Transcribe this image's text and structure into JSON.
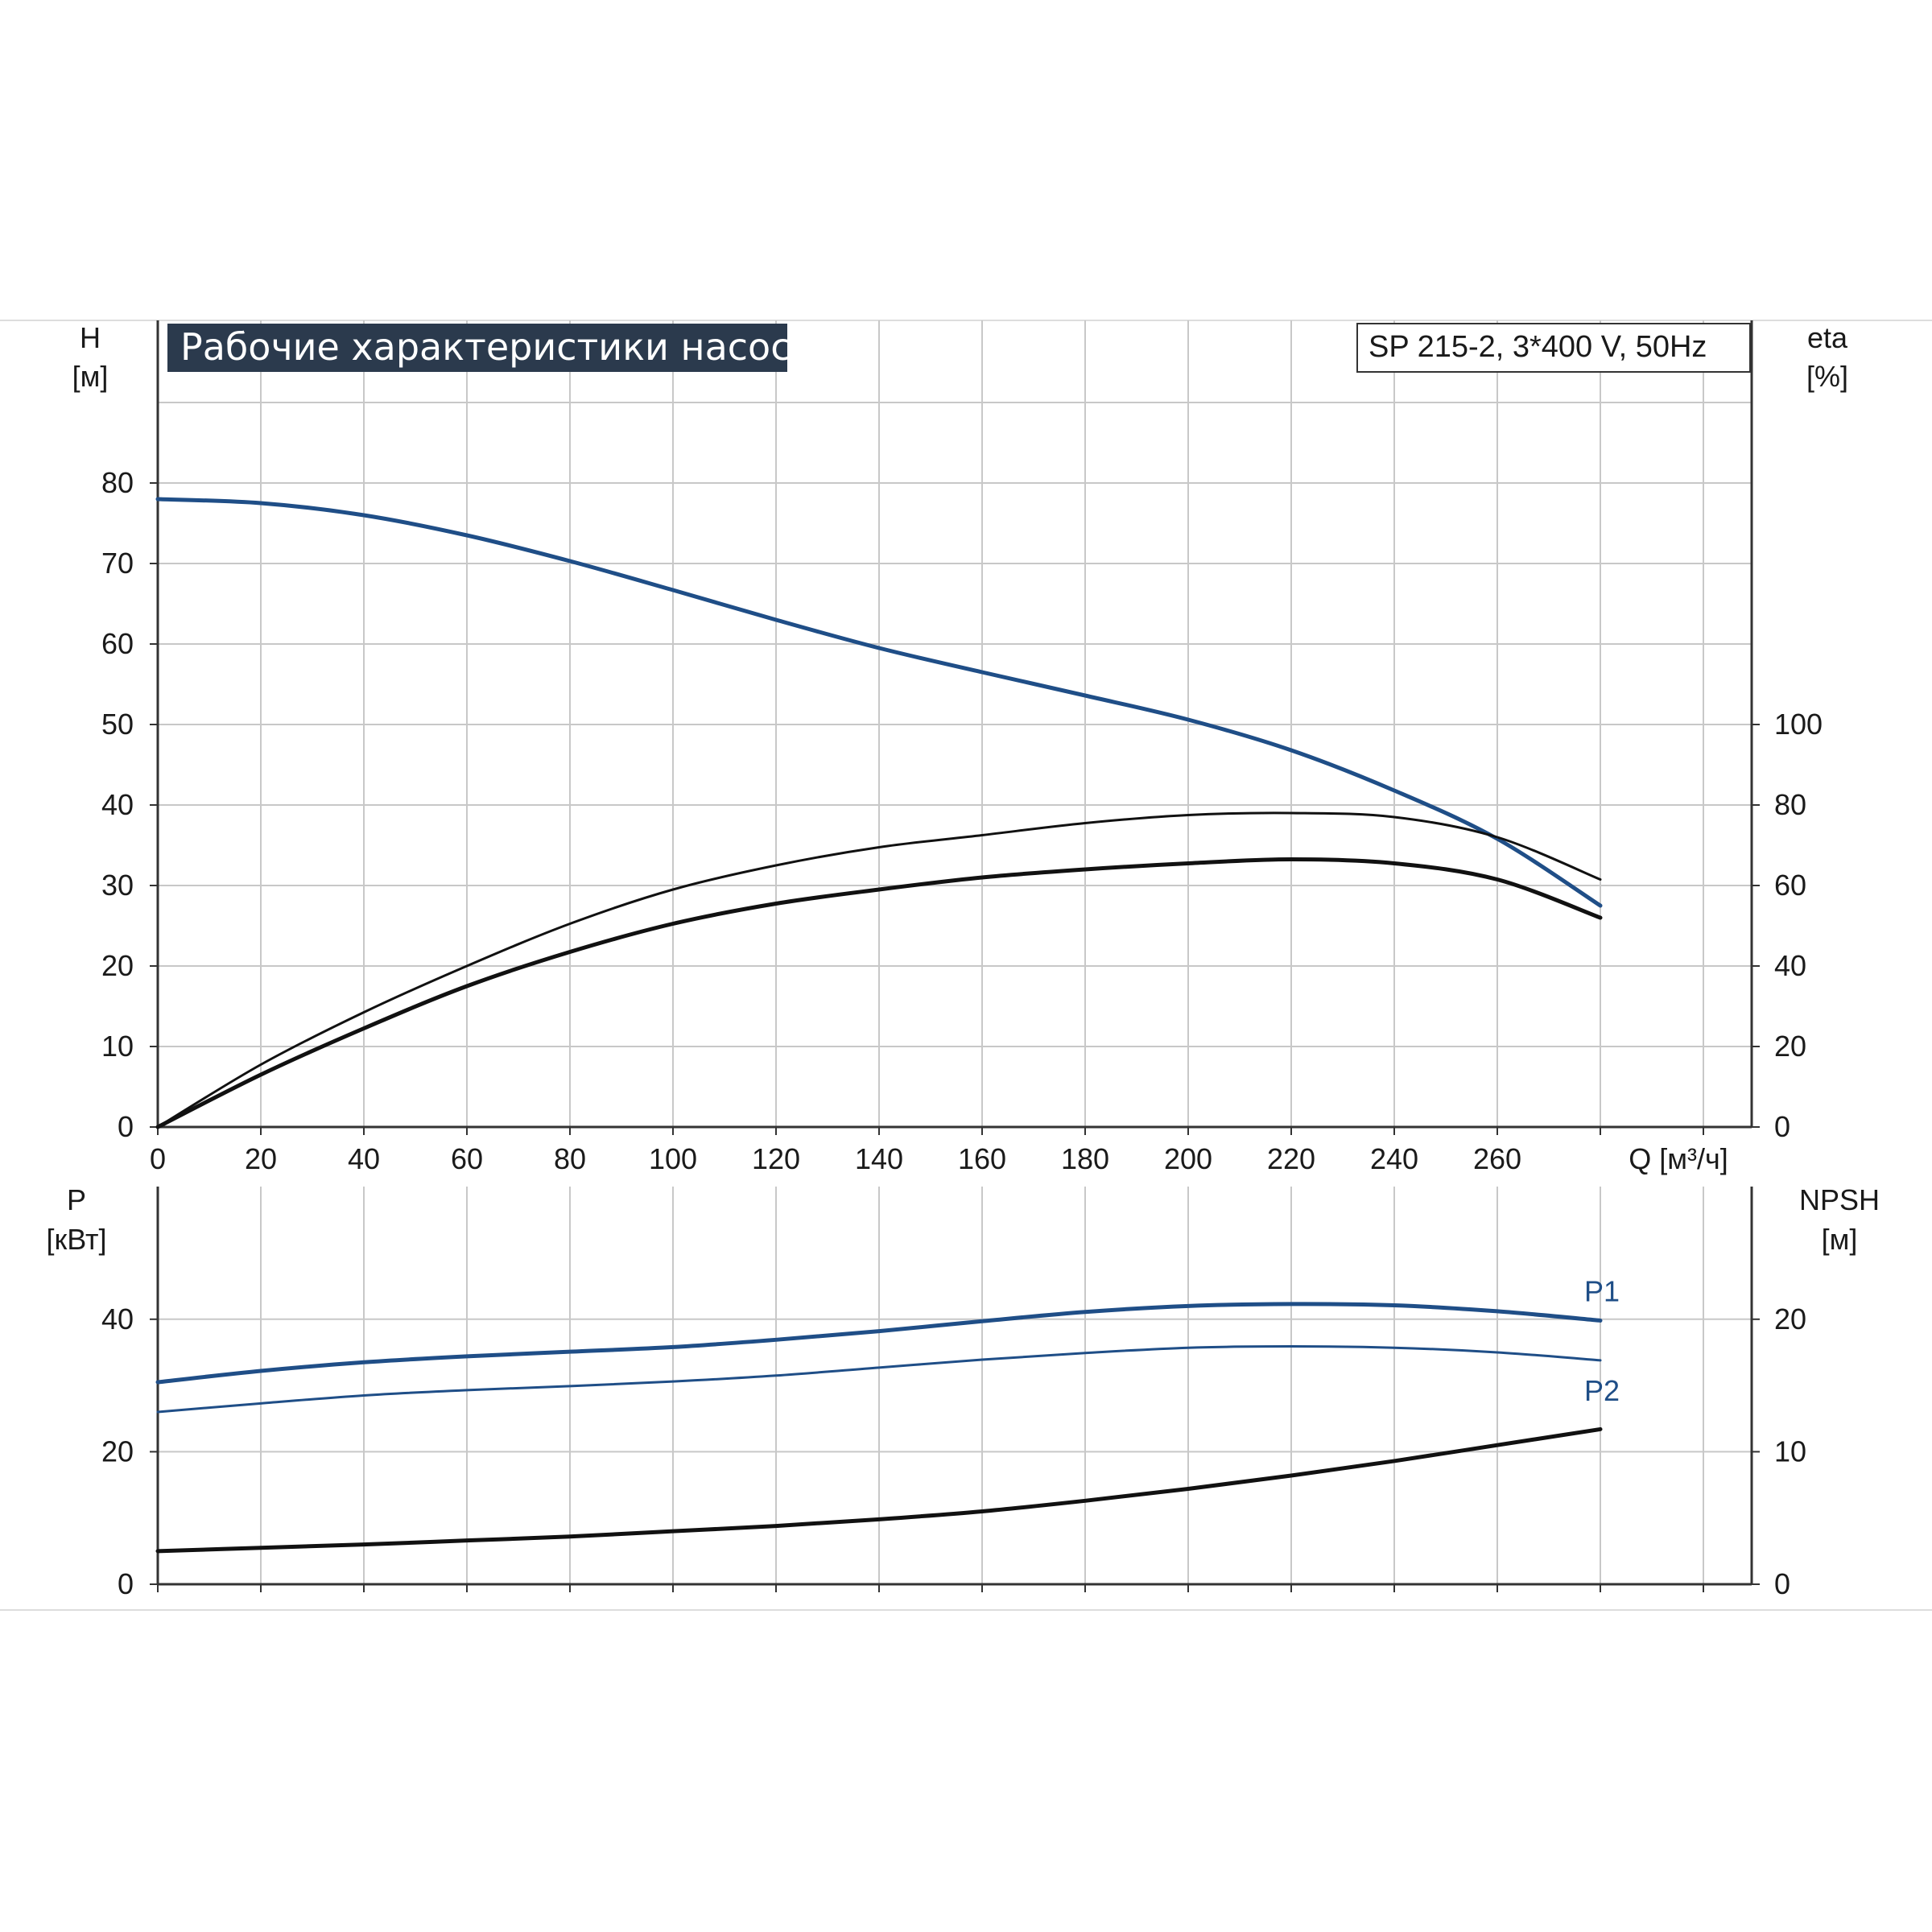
{
  "chart_data": [
    {
      "type": "line",
      "title": "Рабочие характеристики насоса",
      "model": "SP 215-2, 3*400 V, 50Hz",
      "x_label": "Q [м³/ч]",
      "x_ticks": [
        "0",
        "20",
        "40",
        "60",
        "80",
        "100",
        "120",
        "140",
        "160",
        "180",
        "200",
        "220",
        "240",
        "260"
      ],
      "xlim": [
        0,
        310
      ],
      "y_left": {
        "label": [
          "H",
          "[м]"
        ],
        "ticks": [
          "0",
          "10",
          "20",
          "30",
          "40",
          "50",
          "60",
          "70",
          "80"
        ],
        "lim": [
          0,
          90
        ]
      },
      "y_right": {
        "label": [
          "eta",
          "[%]"
        ],
        "ticks": [
          "0",
          "20",
          "40",
          "60",
          "80",
          "100"
        ],
        "lim": [
          0,
          180
        ]
      },
      "grid": true,
      "series": [
        {
          "color": "#1f4e87",
          "axis": "left",
          "x": [
            0,
            20,
            40,
            60,
            80,
            100,
            120,
            140,
            160,
            180,
            200,
            220,
            240,
            260,
            280
          ],
          "y": [
            78,
            77.5,
            76,
            73.5,
            70.3,
            66.7,
            63,
            59.5,
            56.5,
            53.6,
            50.6,
            46.8,
            41.8,
            35.8,
            27.5
          ]
        },
        {
          "color": "#111111",
          "axis": "right",
          "x": [
            0,
            20,
            40,
            60,
            80,
            100,
            120,
            140,
            160,
            180,
            200,
            220,
            240,
            260,
            280
          ],
          "y": [
            0,
            15.5,
            28.5,
            40,
            50.5,
            59,
            65,
            69.5,
            72.5,
            75.5,
            77.5,
            78,
            77,
            72,
            61.5
          ]
        },
        {
          "color": "#111111",
          "axis": "right",
          "x": [
            0,
            20,
            40,
            60,
            80,
            100,
            120,
            140,
            160,
            180,
            200,
            220,
            240,
            260,
            280
          ],
          "y": [
            0,
            13,
            24.5,
            35,
            43.5,
            50.5,
            55.5,
            59,
            62,
            64,
            65.5,
            66.5,
            65.5,
            61.5,
            52
          ]
        }
      ]
    },
    {
      "type": "line",
      "x_label": "",
      "x_ticks": [
        "20",
        "40",
        "60",
        "80",
        "100",
        "120",
        "140",
        "160",
        "180",
        "200",
        "220",
        "240",
        "260"
      ],
      "xlim": [
        0,
        310
      ],
      "y_left": {
        "label": [
          "P",
          "[кВт]"
        ],
        "ticks": [
          "0",
          "20",
          "40"
        ],
        "lim": [
          0,
          60
        ]
      },
      "y_right": {
        "label": [
          "NPSH",
          "[м]"
        ],
        "ticks": [
          "0",
          "10",
          "20"
        ],
        "lim": [
          0,
          30
        ]
      },
      "grid": true,
      "series": [
        {
          "name": "P1",
          "color": "#1f4e87",
          "axis": "left",
          "x": [
            0,
            20,
            40,
            60,
            80,
            100,
            120,
            140,
            160,
            180,
            200,
            220,
            240,
            260,
            280
          ],
          "y": [
            30.5,
            32.2,
            33.5,
            34.4,
            35.1,
            35.8,
            36.9,
            38.2,
            39.7,
            41.1,
            42,
            42.3,
            42.1,
            41.2,
            39.8
          ]
        },
        {
          "name": "P2",
          "color": "#1f4e87",
          "axis": "left",
          "x": [
            0,
            20,
            40,
            60,
            80,
            100,
            120,
            140,
            160,
            180,
            200,
            220,
            240,
            260,
            280
          ],
          "y": [
            26,
            27.3,
            28.5,
            29.3,
            29.9,
            30.6,
            31.5,
            32.7,
            33.9,
            34.9,
            35.7,
            35.9,
            35.7,
            35,
            33.8
          ]
        },
        {
          "color": "#111111",
          "axis": "right",
          "x": [
            0,
            20,
            40,
            60,
            80,
            100,
            120,
            140,
            160,
            180,
            200,
            220,
            240,
            260,
            280
          ],
          "y": [
            2.5,
            2.75,
            3,
            3.3,
            3.6,
            4,
            4.4,
            4.9,
            5.5,
            6.3,
            7.2,
            8.2,
            9.3,
            10.5,
            11.7
          ]
        }
      ]
    }
  ]
}
